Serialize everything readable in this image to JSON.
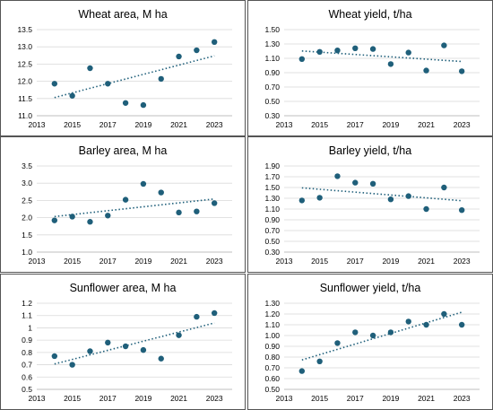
{
  "colors": {
    "marker": "#1f5f7a",
    "trend": "#1f5f7a",
    "grid": "#d9d9d9",
    "axis": "#bfbfbf",
    "text": "#000000"
  },
  "chart_data": [
    {
      "type": "scatter",
      "title": "Wheat area, M ha",
      "xlabel": "",
      "ylabel": "",
      "xlim": [
        2013,
        2024
      ],
      "xticks": [
        "2013",
        "2015",
        "2017",
        "2019",
        "2021",
        "2023"
      ],
      "ylim": [
        11.0,
        13.5
      ],
      "yticks": [
        "11.0",
        "11.5",
        "12.0",
        "12.5",
        "13.0",
        "13.5"
      ],
      "grid": true,
      "trendline": "linear",
      "x": [
        2014,
        2015,
        2016,
        2017,
        2018,
        2019,
        2020,
        2021,
        2022,
        2023
      ],
      "y": [
        11.93,
        11.58,
        12.38,
        11.93,
        11.37,
        11.31,
        12.07,
        12.72,
        12.9,
        13.14
      ]
    },
    {
      "type": "scatter",
      "title": "Wheat yield, t/ha",
      "xlabel": "",
      "ylabel": "",
      "xlim": [
        2013,
        2024
      ],
      "xticks": [
        "2013",
        "2015",
        "2017",
        "2019",
        "2021",
        "2023"
      ],
      "ylim": [
        0.3,
        1.5
      ],
      "yticks": [
        "0.30",
        "0.50",
        "0.70",
        "0.90",
        "1.10",
        "1.30",
        "1.50"
      ],
      "grid": true,
      "trendline": "linear",
      "x": [
        2014,
        2015,
        2016,
        2017,
        2018,
        2019,
        2020,
        2021,
        2022,
        2023
      ],
      "y": [
        1.09,
        1.19,
        1.21,
        1.24,
        1.23,
        1.02,
        1.18,
        0.93,
        1.28,
        0.92
      ]
    },
    {
      "type": "scatter",
      "title": "Barley area, M ha",
      "xlabel": "",
      "ylabel": "",
      "xlim": [
        2013,
        2024
      ],
      "xticks": [
        "2013",
        "2015",
        "2017",
        "2019",
        "2021",
        "2023"
      ],
      "ylim": [
        1.0,
        3.5
      ],
      "yticks": [
        "1.0",
        "1.5",
        "2.0",
        "2.5",
        "3.0",
        "3.5"
      ],
      "grid": true,
      "trendline": "linear",
      "x": [
        2014,
        2015,
        2016,
        2017,
        2018,
        2019,
        2020,
        2021,
        2022,
        2023
      ],
      "y": [
        1.92,
        2.03,
        1.88,
        2.06,
        2.52,
        2.98,
        2.73,
        2.15,
        2.18,
        2.42
      ]
    },
    {
      "type": "scatter",
      "title": "Barley yield, t/ha",
      "xlabel": "",
      "ylabel": "",
      "xlim": [
        2013,
        2024
      ],
      "xticks": [
        "2013",
        "2015",
        "2017",
        "2019",
        "2021",
        "2023"
      ],
      "ylim": [
        0.3,
        1.9
      ],
      "yticks": [
        "0.30",
        "0.50",
        "0.70",
        "0.90",
        "1.10",
        "1.30",
        "1.50",
        "1.70",
        "1.90"
      ],
      "grid": true,
      "trendline": "linear",
      "x": [
        2014,
        2015,
        2016,
        2017,
        2018,
        2019,
        2020,
        2021,
        2022,
        2023
      ],
      "y": [
        1.26,
        1.31,
        1.71,
        1.59,
        1.57,
        1.28,
        1.34,
        1.1,
        1.5,
        1.08
      ]
    },
    {
      "type": "scatter",
      "title": "Sunflower area, M ha",
      "xlabel": "",
      "ylabel": "",
      "xlim": [
        2013,
        2024
      ],
      "xticks": [
        "2013",
        "2015",
        "2017",
        "2019",
        "2021",
        "2023"
      ],
      "ylim": [
        0.5,
        1.2
      ],
      "yticks": [
        "0.5",
        "0.6",
        "0.7",
        "0.8",
        "0.9",
        "1",
        "1.1",
        "1.2"
      ],
      "grid": true,
      "trendline": "linear",
      "x": [
        2014,
        2015,
        2016,
        2017,
        2018,
        2019,
        2020,
        2021,
        2022,
        2023
      ],
      "y": [
        0.77,
        0.7,
        0.81,
        0.88,
        0.85,
        0.82,
        0.75,
        0.94,
        1.09,
        1.12
      ]
    },
    {
      "type": "scatter",
      "title": "Sunflower yield, t/ha",
      "xlabel": "",
      "ylabel": "",
      "xlim": [
        2013,
        2024
      ],
      "xticks": [
        "2013",
        "2015",
        "2017",
        "2019",
        "2021",
        "2023"
      ],
      "ylim": [
        0.5,
        1.3
      ],
      "yticks": [
        "0.50",
        "0.60",
        "0.70",
        "0.80",
        "0.90",
        "1.00",
        "1.10",
        "1.20",
        "1.30"
      ],
      "grid": true,
      "trendline": "linear",
      "x": [
        2014,
        2015,
        2016,
        2017,
        2018,
        2019,
        2020,
        2021,
        2022,
        2023
      ],
      "y": [
        0.67,
        0.76,
        0.93,
        1.03,
        1.0,
        1.03,
        1.13,
        1.1,
        1.2,
        1.1
      ]
    }
  ]
}
